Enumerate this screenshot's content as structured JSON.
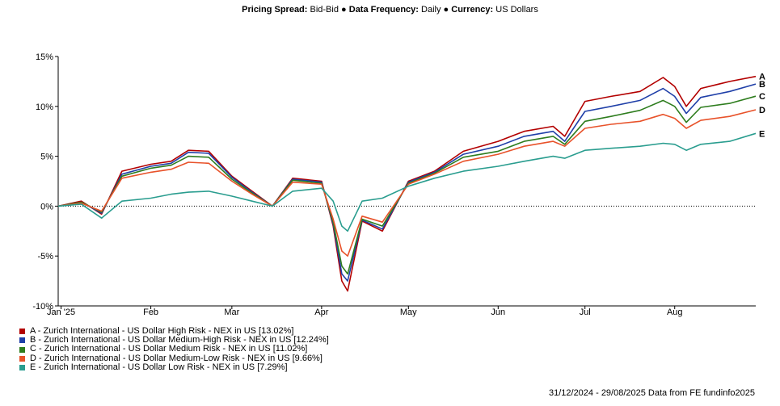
{
  "header": {
    "spread_label": "Pricing Spread:",
    "spread_value": "Bid-Bid",
    "bullet": "●",
    "freq_label": "Data Frequency:",
    "freq_value": "Daily",
    "currency_label": "Currency:",
    "currency_value": "US Dollars"
  },
  "footer": {
    "source_text": "31/12/2024 - 29/08/2025 Data from FE fundinfo2025"
  },
  "chart_data": {
    "type": "line",
    "x_labels": [
      "Jan '25",
      "Feb",
      "Mar",
      "Apr",
      "May",
      "Jun",
      "Jul",
      "Aug"
    ],
    "y_ticks": [
      "15%",
      "10%",
      "5%",
      "0%",
      "-5%",
      "-10%"
    ],
    "ylim": [
      -10,
      15
    ],
    "grid": false,
    "zero_line": "dotted",
    "series": [
      {
        "id": "A",
        "name": "A - Zurich International - US Dollar High Risk - NEX in US [13.02%]",
        "color": "#b30000",
        "x": [
          "2024-12-31",
          "2025-01-08",
          "2025-01-15",
          "2025-01-22",
          "2025-02-01",
          "2025-02-08",
          "2025-02-14",
          "2025-02-21",
          "2025-03-01",
          "2025-03-08",
          "2025-03-15",
          "2025-03-22",
          "2025-04-01",
          "2025-04-05",
          "2025-04-08",
          "2025-04-10",
          "2025-04-15",
          "2025-04-22",
          "2025-05-01",
          "2025-05-10",
          "2025-05-20",
          "2025-06-01",
          "2025-06-10",
          "2025-06-20",
          "2025-06-24",
          "2025-07-01",
          "2025-07-10",
          "2025-07-20",
          "2025-07-28",
          "2025-08-01",
          "2025-08-05",
          "2025-08-10",
          "2025-08-20",
          "2025-08-29"
        ],
        "values": [
          0,
          0.5,
          -0.8,
          3.5,
          4.2,
          4.5,
          5.6,
          5.5,
          3.0,
          1.5,
          0,
          2.8,
          2.5,
          -2.0,
          -7.5,
          -8.5,
          -1.5,
          -2.5,
          2.5,
          3.5,
          5.5,
          6.5,
          7.5,
          8.0,
          7.0,
          10.5,
          11.0,
          11.5,
          12.9,
          12.0,
          10.0,
          11.8,
          12.5,
          13.0
        ]
      },
      {
        "id": "B",
        "name": "B - Zurich International - US Dollar Medium-High Risk - NEX in US [12.24%]",
        "color": "#1f3fa8",
        "x": [
          "2024-12-31",
          "2025-01-08",
          "2025-01-15",
          "2025-01-22",
          "2025-02-01",
          "2025-02-08",
          "2025-02-14",
          "2025-02-21",
          "2025-03-01",
          "2025-03-08",
          "2025-03-15",
          "2025-03-22",
          "2025-04-01",
          "2025-04-05",
          "2025-04-08",
          "2025-04-10",
          "2025-04-15",
          "2025-04-22",
          "2025-05-01",
          "2025-05-10",
          "2025-05-20",
          "2025-06-01",
          "2025-06-10",
          "2025-06-20",
          "2025-06-24",
          "2025-07-01",
          "2025-07-10",
          "2025-07-20",
          "2025-07-28",
          "2025-08-01",
          "2025-08-05",
          "2025-08-10",
          "2025-08-20",
          "2025-08-29"
        ],
        "values": [
          0,
          0.4,
          -0.7,
          3.2,
          4.0,
          4.3,
          5.4,
          5.3,
          2.9,
          1.4,
          0,
          2.7,
          2.4,
          -1.8,
          -6.8,
          -7.5,
          -1.4,
          -2.3,
          2.4,
          3.4,
          5.2,
          6.0,
          7.0,
          7.5,
          6.5,
          9.5,
          10.0,
          10.6,
          11.8,
          11.0,
          9.3,
          10.9,
          11.5,
          12.24
        ]
      },
      {
        "id": "C",
        "name": "C - Zurich International - US Dollar Medium Risk - NEX in US [11.02%]",
        "color": "#2e7d1e",
        "x": [
          "2024-12-31",
          "2025-01-08",
          "2025-01-15",
          "2025-01-22",
          "2025-02-01",
          "2025-02-08",
          "2025-02-14",
          "2025-02-21",
          "2025-03-01",
          "2025-03-08",
          "2025-03-15",
          "2025-03-22",
          "2025-04-01",
          "2025-04-05",
          "2025-04-08",
          "2025-04-10",
          "2025-04-15",
          "2025-04-22",
          "2025-05-01",
          "2025-05-10",
          "2025-05-20",
          "2025-06-01",
          "2025-06-10",
          "2025-06-20",
          "2025-06-24",
          "2025-07-01",
          "2025-07-10",
          "2025-07-20",
          "2025-07-28",
          "2025-08-01",
          "2025-08-05",
          "2025-08-10",
          "2025-08-20",
          "2025-08-29"
        ],
        "values": [
          0,
          0.4,
          -0.6,
          3.0,
          3.8,
          4.1,
          5.0,
          4.9,
          2.7,
          1.3,
          0,
          2.6,
          2.3,
          -1.6,
          -6.0,
          -6.8,
          -1.3,
          -2.0,
          2.3,
          3.3,
          4.9,
          5.5,
          6.5,
          7.0,
          6.2,
          8.5,
          9.0,
          9.6,
          10.6,
          10.0,
          8.4,
          9.9,
          10.3,
          11.02
        ]
      },
      {
        "id": "D",
        "name": "D - Zurich International - US Dollar Medium-Low Risk - NEX in US [9.66%]",
        "color": "#e8522a",
        "x": [
          "2024-12-31",
          "2025-01-08",
          "2025-01-15",
          "2025-01-22",
          "2025-02-01",
          "2025-02-08",
          "2025-02-14",
          "2025-02-21",
          "2025-03-01",
          "2025-03-08",
          "2025-03-15",
          "2025-03-22",
          "2025-04-01",
          "2025-04-05",
          "2025-04-08",
          "2025-04-10",
          "2025-04-15",
          "2025-04-22",
          "2025-05-01",
          "2025-05-10",
          "2025-05-20",
          "2025-06-01",
          "2025-06-10",
          "2025-06-20",
          "2025-06-24",
          "2025-07-01",
          "2025-07-10",
          "2025-07-20",
          "2025-07-28",
          "2025-08-01",
          "2025-08-05",
          "2025-08-10",
          "2025-08-20",
          "2025-08-29"
        ],
        "values": [
          0,
          0.3,
          -0.5,
          2.8,
          3.4,
          3.7,
          4.4,
          4.3,
          2.5,
          1.2,
          0,
          2.4,
          2.2,
          -1.3,
          -4.5,
          -5.0,
          -1.0,
          -1.6,
          2.2,
          3.2,
          4.5,
          5.2,
          6.0,
          6.5,
          6.0,
          7.8,
          8.2,
          8.5,
          9.2,
          8.8,
          7.8,
          8.6,
          9.0,
          9.66
        ]
      },
      {
        "id": "E",
        "name": "E - Zurich International - US Dollar Low Risk - NEX in US [7.29%]",
        "color": "#2a9d8f",
        "x": [
          "2024-12-31",
          "2025-01-08",
          "2025-01-15",
          "2025-01-22",
          "2025-02-01",
          "2025-02-08",
          "2025-02-14",
          "2025-02-21",
          "2025-03-01",
          "2025-03-08",
          "2025-03-15",
          "2025-03-22",
          "2025-04-01",
          "2025-04-05",
          "2025-04-08",
          "2025-04-10",
          "2025-04-15",
          "2025-04-22",
          "2025-05-01",
          "2025-05-10",
          "2025-05-20",
          "2025-06-01",
          "2025-06-10",
          "2025-06-20",
          "2025-06-24",
          "2025-07-01",
          "2025-07-10",
          "2025-07-20",
          "2025-07-28",
          "2025-08-01",
          "2025-08-05",
          "2025-08-10",
          "2025-08-20",
          "2025-08-29"
        ],
        "values": [
          0,
          0.2,
          -1.2,
          0.5,
          0.8,
          1.2,
          1.4,
          1.5,
          1.0,
          0.5,
          0,
          1.5,
          1.8,
          0.5,
          -2.0,
          -2.5,
          0.5,
          0.8,
          2.0,
          2.8,
          3.5,
          4.0,
          4.5,
          5.0,
          4.8,
          5.6,
          5.8,
          6.0,
          6.3,
          6.2,
          5.6,
          6.2,
          6.5,
          7.29
        ]
      }
    ]
  }
}
